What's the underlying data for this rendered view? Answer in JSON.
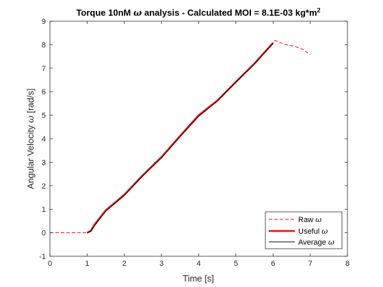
{
  "chart_data": {
    "type": "line",
    "title": {
      "prefix": "Torque 10nM ",
      "symbol": "ω",
      "middle": " analysis - Calculated MOI = 8.1E-03 kg*m",
      "superscript": "2"
    },
    "xlabel": "Time [s]",
    "ylabel": {
      "text": "Angular Velocity ",
      "symbol": "ω",
      "unit": " [rad/s]"
    },
    "xlim": [
      0,
      8
    ],
    "ylim": [
      -1,
      9
    ],
    "xticks": [
      0,
      1,
      2,
      3,
      4,
      5,
      6,
      7,
      8
    ],
    "yticks": [
      -1,
      0,
      1,
      2,
      3,
      4,
      5,
      6,
      7,
      8,
      9
    ],
    "grid": false,
    "legend_position": "bottom-right",
    "series": [
      {
        "name": "Raw ω",
        "legend_text": "Raw ",
        "legend_symbol": "ω",
        "color": "#ff0000",
        "style": "dashed",
        "x": [
          0,
          1.0,
          1.1,
          1.2,
          1.5,
          2.0,
          2.5,
          3.0,
          3.5,
          4.0,
          4.5,
          5.0,
          5.5,
          6.0,
          6.05,
          6.3,
          6.6,
          6.8,
          7.0
        ],
        "y": [
          0,
          0,
          0.08,
          0.35,
          0.95,
          1.62,
          2.45,
          3.22,
          4.12,
          5.0,
          5.62,
          6.42,
          7.2,
          8.08,
          8.18,
          8.02,
          7.92,
          7.8,
          7.58
        ]
      },
      {
        "name": "Useful ω",
        "legend_text": "Useful ",
        "legend_symbol": "ω",
        "color": "#ff0000",
        "style": "solid-thick",
        "x": [
          1.0,
          1.1,
          1.2,
          1.5,
          2.0,
          2.5,
          3.0,
          3.5,
          4.0,
          4.5,
          5.0,
          5.5,
          6.0
        ],
        "y": [
          0,
          0.08,
          0.35,
          0.95,
          1.62,
          2.45,
          3.22,
          4.12,
          5.0,
          5.62,
          6.42,
          7.2,
          8.08
        ]
      },
      {
        "name": "Average ω",
        "legend_text": "Average ",
        "legend_symbol": "ω",
        "color": "#000000",
        "style": "solid-thin",
        "x": [
          1.0,
          1.1,
          1.2,
          1.5,
          2.0,
          2.5,
          3.0,
          3.5,
          4.0,
          4.5,
          5.0,
          5.5,
          6.0
        ],
        "y": [
          0,
          0.06,
          0.3,
          0.92,
          1.58,
          2.42,
          3.18,
          4.08,
          4.95,
          5.6,
          6.4,
          7.18,
          8.05
        ]
      }
    ]
  }
}
